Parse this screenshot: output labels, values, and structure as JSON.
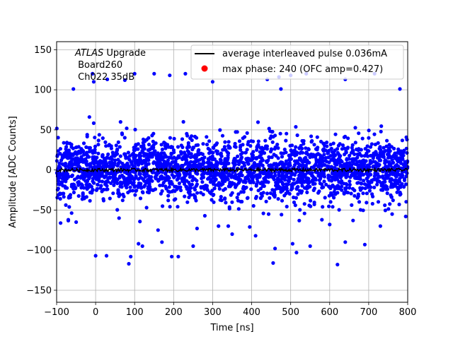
{
  "chart_data": {
    "type": "scatter",
    "xlabel": "Time [ns]",
    "ylabel": "Amplitude [ADC Counts]",
    "xlim": [
      -100,
      800
    ],
    "ylim": [
      -165,
      160
    ],
    "xticks": [
      -100,
      0,
      100,
      200,
      300,
      400,
      500,
      600,
      700,
      800
    ],
    "yticks": [
      -150,
      -100,
      -50,
      0,
      50,
      100,
      150
    ],
    "grid": true,
    "legend_position": "top-right",
    "annotation": {
      "line1_italic": "ATLAS",
      "line1_rest": " Upgrade",
      "line2": " Board260",
      "line3": " Ch022 35dB"
    },
    "series": [
      {
        "name": "average interleaved pulse 0.036mA",
        "type": "line",
        "color": "#000000",
        "x_range": [
          -100,
          800
        ],
        "mean": 0,
        "spread": 2
      },
      {
        "name": "max phase: 240 (OFC amp=0.427)",
        "type": "scatter",
        "color": "#ff0000",
        "legend_only": true
      },
      {
        "name": "",
        "type": "scatter",
        "color": "#0000ff",
        "x_range": [
          -100,
          800
        ],
        "bulk_range": [
          -30,
          30
        ],
        "tail_range": [
          -117,
          115
        ],
        "outliers": [
          [
            -57,
            101
          ],
          [
            -8,
            120
          ],
          [
            30,
            113
          ],
          [
            75,
            112
          ],
          [
            100,
            120
          ],
          [
            150,
            120
          ],
          [
            190,
            118
          ],
          [
            230,
            120
          ],
          [
            300,
            110
          ],
          [
            440,
            113
          ],
          [
            470,
            116
          ],
          [
            475,
            101
          ],
          [
            500,
            118
          ],
          [
            540,
            120
          ],
          [
            640,
            113
          ],
          [
            715,
            120
          ],
          [
            780,
            101
          ],
          [
            -5,
            110
          ],
          [
            -16,
            66
          ],
          [
            225,
            60
          ],
          [
            0,
            -107
          ],
          [
            28,
            -107
          ],
          [
            90,
            -108
          ],
          [
            85,
            -117
          ],
          [
            120,
            -95
          ],
          [
            250,
            -95
          ],
          [
            460,
            -98
          ],
          [
            455,
            -116
          ],
          [
            505,
            -92
          ],
          [
            515,
            -103
          ],
          [
            550,
            -95
          ],
          [
            620,
            -118
          ],
          [
            640,
            -90
          ],
          [
            690,
            -93
          ],
          [
            110,
            -92
          ],
          [
            170,
            -90
          ],
          [
            195,
            -108
          ],
          [
            212,
            -108
          ],
          [
            315,
            -70
          ],
          [
            350,
            -80
          ],
          [
            395,
            -71
          ],
          [
            410,
            -82
          ],
          [
            -70,
            -62
          ],
          [
            -50,
            -65
          ],
          [
            60,
            -60
          ],
          [
            160,
            -75
          ],
          [
            260,
            -73
          ],
          [
            340,
            -70
          ],
          [
            580,
            -62
          ],
          [
            600,
            -68
          ],
          [
            660,
            -63
          ],
          [
            730,
            -70
          ],
          [
            760,
            -55
          ],
          [
            795,
            -58
          ]
        ]
      }
    ]
  }
}
